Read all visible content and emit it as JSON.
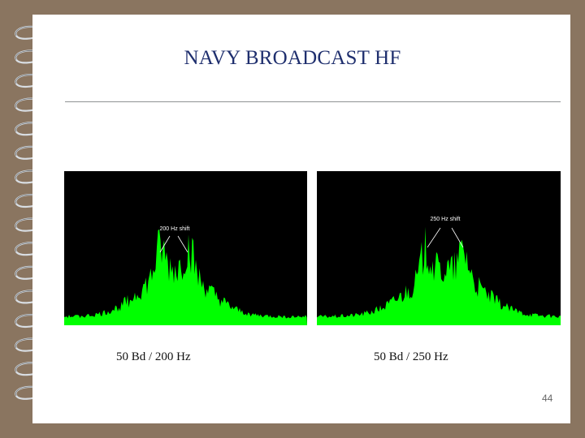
{
  "slide": {
    "title": "NAVY BROADCAST HF",
    "page_number": "44"
  },
  "spectra": [
    {
      "annotation": "200 Hz shift",
      "caption": "50 Bd / 200 Hz",
      "trace_color": "#00ff00",
      "background_color": "#000000"
    },
    {
      "annotation": "250 Hz shift",
      "caption": "50 Bd / 250 Hz",
      "trace_color": "#00ff00",
      "background_color": "#000000"
    }
  ],
  "colors": {
    "slide_background": "#ffffff",
    "frame": "#8a7560",
    "title": "#1f2f6e"
  }
}
